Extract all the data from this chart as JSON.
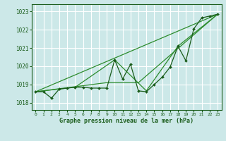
{
  "title": "Graphe pression niveau de la mer (hPa)",
  "bg_color": "#cce8e8",
  "grid_color": "#ffffff",
  "line_color_dark": "#1a5c1a",
  "line_color_light": "#2d8c2d",
  "xlim": [
    -0.5,
    23.5
  ],
  "ylim": [
    1017.6,
    1023.4
  ],
  "yticks": [
    1018,
    1019,
    1020,
    1021,
    1022,
    1023
  ],
  "xticks": [
    0,
    1,
    2,
    3,
    4,
    5,
    6,
    7,
    8,
    9,
    10,
    11,
    12,
    13,
    14,
    15,
    16,
    17,
    18,
    19,
    20,
    21,
    22,
    23
  ],
  "series_raw": {
    "x": [
      0,
      1,
      2,
      3,
      4,
      5,
      6,
      7,
      8,
      9,
      10,
      11,
      12,
      13,
      14,
      15,
      16,
      17,
      18,
      19,
      20,
      21,
      22,
      23
    ],
    "y": [
      1018.6,
      1018.6,
      1018.25,
      1018.75,
      1018.8,
      1018.85,
      1018.85,
      1018.8,
      1018.8,
      1018.8,
      1020.35,
      1019.3,
      1020.1,
      1018.65,
      1018.6,
      1019.0,
      1019.4,
      1019.95,
      1021.1,
      1020.3,
      1022.05,
      1022.65,
      1022.75,
      1022.85
    ]
  },
  "series_line1": {
    "x": [
      0,
      23
    ],
    "y": [
      1018.6,
      1022.85
    ]
  },
  "series_line2": {
    "x": [
      0,
      9,
      13,
      23
    ],
    "y": [
      1018.6,
      1019.1,
      1019.1,
      1022.85
    ]
  },
  "series_line3": {
    "x": [
      0,
      5,
      10,
      14,
      18,
      23
    ],
    "y": [
      1018.6,
      1018.85,
      1020.35,
      1018.65,
      1021.1,
      1022.85
    ]
  }
}
